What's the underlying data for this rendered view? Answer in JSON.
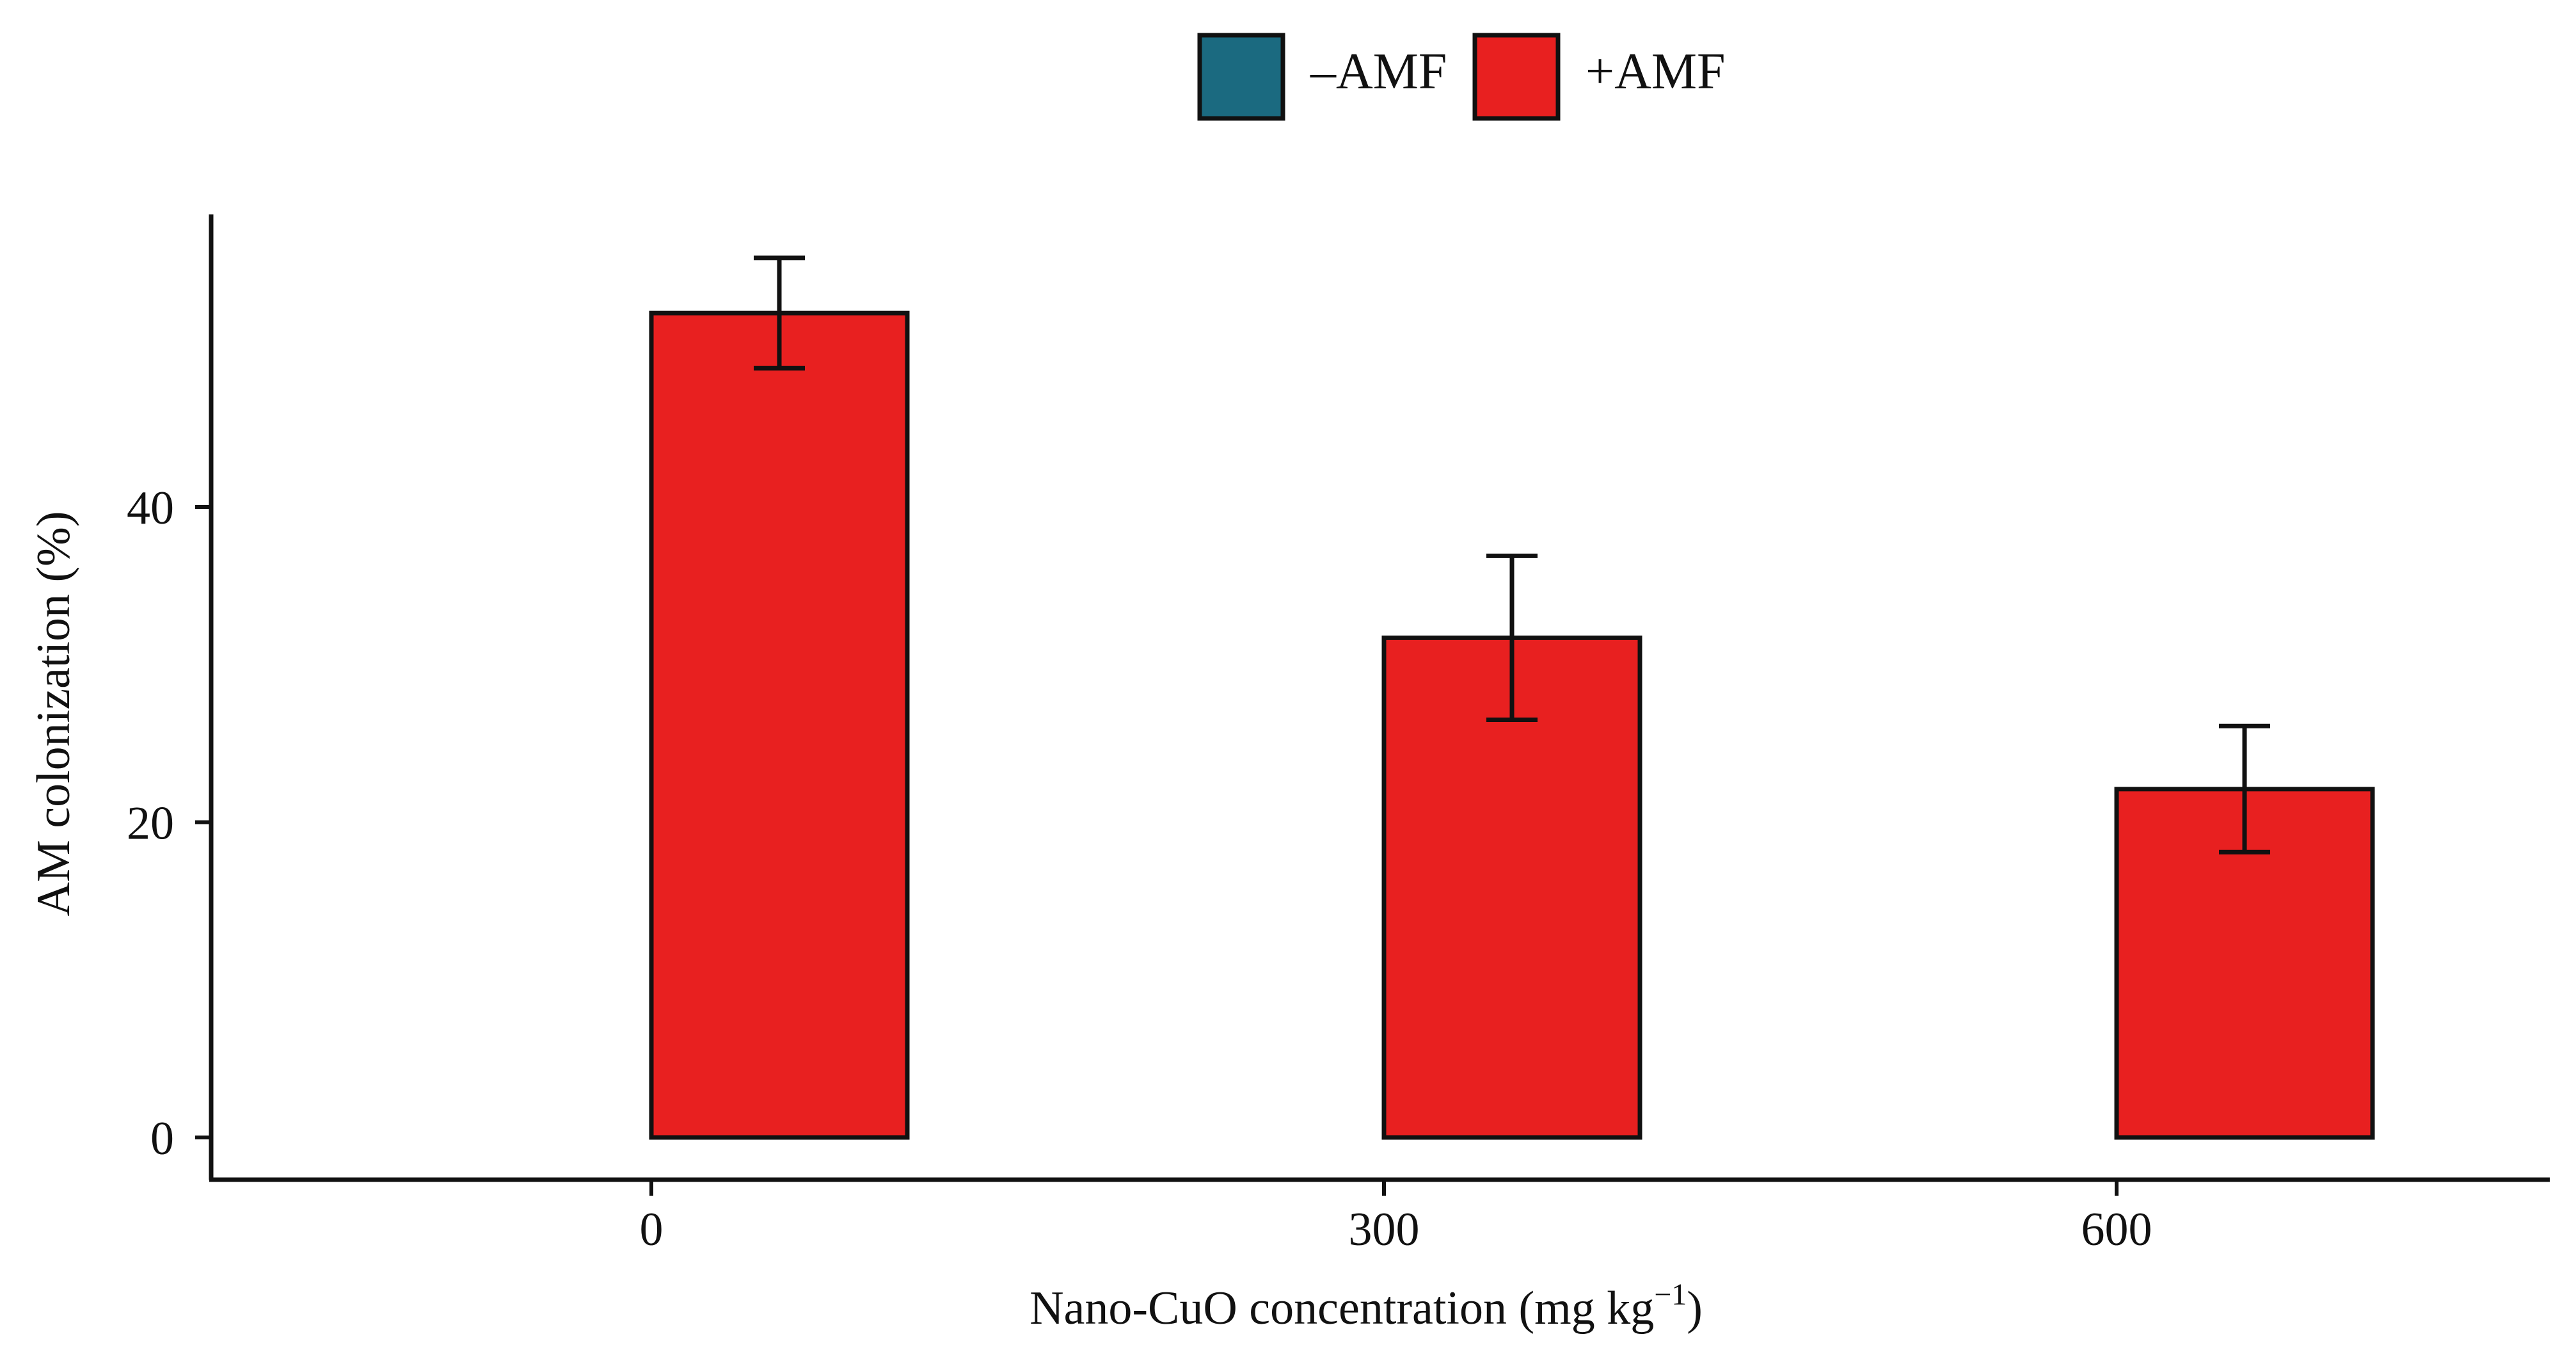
{
  "chart_data": {
    "type": "bar",
    "xlabel": "Nano-CuO concentration (mg kg",
    "xlabel_sup": "−1",
    "xlabel_suffix": ")",
    "ylabel": "AM colonization (%)",
    "categories": [
      "0",
      "300",
      "600"
    ],
    "ylim": [
      0,
      56
    ],
    "yticks": [
      0,
      20,
      40
    ],
    "grid": false,
    "legend_position": "top",
    "series": [
      {
        "name": "–AMF",
        "color": "#1b6a80",
        "values": [
          0,
          0,
          0
        ],
        "errors": [
          0,
          0,
          0
        ]
      },
      {
        "name": "+AMF",
        "color": "#e82020",
        "values": [
          52.3,
          31.7,
          22.1
        ],
        "errors": [
          3.5,
          5.2,
          4.0
        ]
      }
    ]
  }
}
